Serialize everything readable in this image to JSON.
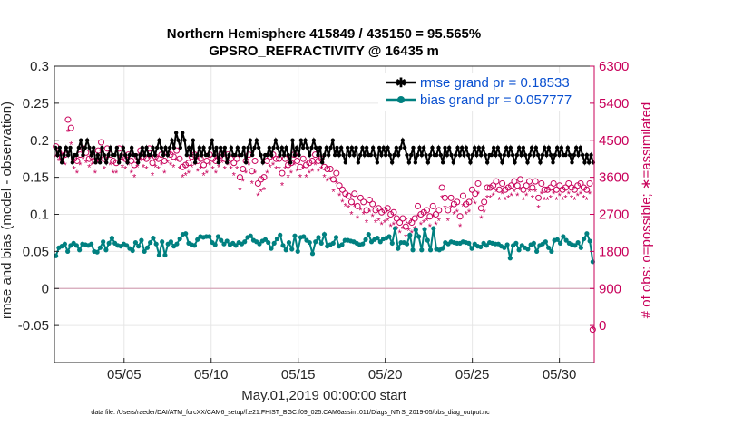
{
  "chart_data": {
    "type": "line",
    "title": "Northern Hemisphere 415849 / 435150 = 95.565%",
    "subtitle": "GPSRO_REFRACTIVITY @ 16435 m",
    "xlabel": "May.01,2019 00:00:00 start",
    "ylabel_left": "rmse and bias (model - observation)",
    "ylabel_right": "# of obs: o=possible; ∗=assimilated",
    "footer": "data file: /Users/raeder/DAI/ATM_forcXX/CAM6_setup/f.e21.FHIST_BGC.f09_025.CAM6assim.011/Diags_NTrS_2019-05/obs_diag_output.nc",
    "xlim": [
      1,
      32
    ],
    "x_ticks": [
      5,
      10,
      15,
      20,
      25,
      30
    ],
    "x_tick_labels": [
      "05/05",
      "05/10",
      "05/15",
      "05/20",
      "05/25",
      "05/30"
    ],
    "ylim_left": [
      -0.1,
      0.3
    ],
    "y_ticks_left": [
      -0.05,
      0,
      0.05,
      0.1,
      0.15,
      0.2,
      0.25,
      0.3
    ],
    "y_tick_labels_left": [
      "-0.05",
      "0",
      "0.05",
      "0.1",
      "0.15",
      "0.2",
      "0.25",
      "0.3"
    ],
    "ylim_right": [
      -900,
      6300
    ],
    "y_ticks_right": [
      0,
      900,
      1800,
      2700,
      3600,
      4500,
      5400,
      6300
    ],
    "y_tick_labels_right": [
      "0",
      "900",
      "1800",
      "2700",
      "3600",
      "4500",
      "5400",
      "6300"
    ],
    "legend": [
      {
        "label": "rmse grand pr = 0.18533",
        "color": "#000000",
        "marker": "asterisk"
      },
      {
        "label": "bias grand pr = 0.057777",
        "color": "#008080",
        "marker": "circle"
      }
    ],
    "series": [
      {
        "name": "rmse",
        "axis": "left",
        "color": "#000000",
        "values": [
          0.19,
          0.18,
          0.19,
          0.17,
          0.18,
          0.19,
          0.18,
          0.19,
          0.17,
          0.18,
          0.18,
          0.19,
          0.2,
          0.18,
          0.19,
          0.2,
          0.19,
          0.18,
          0.19,
          0.17,
          0.18,
          0.17,
          0.19,
          0.18,
          0.17,
          0.18,
          0.19,
          0.18,
          0.18,
          0.19,
          0.17,
          0.18,
          0.19,
          0.18,
          0.17,
          0.18,
          0.19,
          0.18,
          0.18,
          0.17,
          0.18,
          0.19,
          0.18,
          0.19,
          0.18,
          0.18,
          0.19,
          0.18,
          0.19,
          0.2,
          0.19,
          0.18,
          0.19,
          0.18,
          0.19,
          0.2,
          0.19,
          0.21,
          0.2,
          0.19,
          0.21,
          0.2,
          0.18,
          0.19,
          0.18,
          0.2,
          0.17,
          0.18,
          0.19,
          0.18,
          0.19,
          0.18,
          0.18,
          0.19,
          0.2,
          0.18,
          0.19,
          0.17,
          0.19,
          0.18,
          0.19,
          0.17,
          0.18,
          0.19,
          0.18,
          0.18,
          0.19,
          0.18,
          0.18,
          0.19,
          0.17,
          0.19,
          0.2,
          0.18,
          0.19,
          0.2,
          0.19,
          0.18,
          0.17,
          0.18,
          0.18,
          0.19,
          0.18,
          0.19,
          0.2,
          0.19,
          0.18,
          0.19,
          0.18,
          0.19,
          0.18,
          0.17,
          0.2,
          0.18,
          0.19,
          0.18,
          0.2,
          0.19,
          0.2,
          0.19,
          0.18,
          0.19,
          0.2,
          0.19,
          0.18,
          0.19,
          0.17,
          0.18,
          0.19,
          0.18,
          0.19,
          0.2,
          0.18,
          0.19,
          0.18,
          0.19,
          0.18,
          0.17,
          0.19,
          0.18,
          0.19,
          0.18,
          0.19,
          0.17,
          0.18,
          0.19,
          0.18,
          0.19,
          0.18,
          0.18,
          0.19,
          0.18,
          0.17,
          0.19,
          0.18,
          0.19,
          0.18,
          0.19,
          0.18,
          0.17,
          0.18,
          0.19,
          0.18,
          0.19,
          0.2,
          0.19,
          0.18,
          0.17,
          0.18,
          0.19,
          0.17,
          0.18,
          0.19,
          0.18,
          0.19,
          0.18,
          0.17,
          0.18,
          0.19,
          0.18,
          0.18,
          0.19,
          0.18,
          0.17,
          0.19,
          0.18,
          0.19,
          0.18,
          0.17,
          0.18,
          0.19,
          0.18,
          0.19,
          0.18,
          0.19,
          0.18,
          0.17,
          0.18,
          0.19,
          0.18,
          0.19,
          0.18,
          0.19,
          0.18,
          0.17,
          0.18,
          0.18,
          0.19,
          0.18,
          0.19,
          0.18,
          0.17,
          0.18,
          0.19,
          0.18,
          0.19,
          0.18,
          0.17,
          0.18,
          0.19,
          0.18,
          0.19,
          0.18,
          0.17,
          0.18,
          0.19,
          0.18,
          0.19,
          0.18,
          0.17,
          0.18,
          0.19,
          0.18,
          0.19,
          0.18,
          0.17,
          0.18,
          0.19,
          0.18,
          0.19,
          0.18,
          0.18,
          0.19,
          0.18,
          0.17,
          0.18,
          0.19,
          0.18,
          0.19,
          0.18,
          0.17,
          0.18,
          0.17,
          0.18,
          0.17
        ]
      },
      {
        "name": "bias",
        "axis": "left",
        "color": "#008080",
        "values": [
          0.044,
          0.055,
          0.057,
          0.06,
          0.05,
          0.058,
          0.061,
          0.058,
          0.052,
          0.06,
          0.059,
          0.058,
          0.06,
          0.05,
          0.049,
          0.055,
          0.063,
          0.052,
          0.061,
          0.068,
          0.061,
          0.058,
          0.057,
          0.06,
          0.058,
          0.054,
          0.051,
          0.062,
          0.057,
          0.065,
          0.05,
          0.055,
          0.062,
          0.068,
          0.06,
          0.045,
          0.063,
          0.045,
          0.06,
          0.063,
          0.057,
          0.06,
          0.067,
          0.073,
          0.074,
          0.061,
          0.059,
          0.058,
          0.066,
          0.07,
          0.069,
          0.07,
          0.07,
          0.062,
          0.059,
          0.07,
          0.065,
          0.06,
          0.064,
          0.059,
          0.061,
          0.058,
          0.062,
          0.06,
          0.063,
          0.069,
          0.071,
          0.065,
          0.063,
          0.06,
          0.064,
          0.066,
          0.062,
          0.054,
          0.061,
          0.067,
          0.072,
          0.058,
          0.052,
          0.062,
          0.053,
          0.071,
          0.05,
          0.069,
          0.07,
          0.065,
          0.062,
          0.047,
          0.063,
          0.069,
          0.061,
          0.073,
          0.057,
          0.059,
          0.061,
          0.069,
          0.057,
          0.059,
          0.065,
          0.065,
          0.064,
          0.063,
          0.061,
          0.059,
          0.06,
          0.066,
          0.073,
          0.063,
          0.066,
          0.068,
          0.063,
          0.067,
          0.068,
          0.07,
          0.061,
          0.081,
          0.054,
          0.062,
          0.062,
          0.06,
          0.072,
          0.052,
          0.079,
          0.07,
          0.052,
          0.08,
          0.065,
          0.052,
          0.081,
          0.053,
          0.052,
          0.054,
          0.062,
          0.06,
          0.063,
          0.062,
          0.061,
          0.061,
          0.063,
          0.062,
          0.061,
          0.054,
          0.06,
          0.057,
          0.056,
          0.061,
          0.058,
          0.062,
          0.061,
          0.06,
          0.06,
          0.057,
          0.055,
          0.059,
          0.041,
          0.058,
          0.061,
          0.052,
          0.058,
          0.055,
          0.053,
          0.059,
          0.061,
          0.05,
          0.058,
          0.06,
          0.063,
          0.055,
          0.05,
          0.065,
          0.066,
          0.061,
          0.07,
          0.065,
          0.061,
          0.059,
          0.058,
          0.062,
          0.055,
          0.067,
          0.074,
          0.064,
          0.036
        ]
      },
      {
        "name": "obs possible",
        "axis": "right",
        "color": "#c8005a",
        "marker": "o",
        "values": [
          4350,
          4200,
          4100,
          4150,
          5000,
          4800,
          4050,
          4000,
          4150,
          4300,
          4200,
          4050,
          4100,
          4000,
          4250,
          4450,
          4050,
          4300,
          4150,
          4000,
          3950,
          4300,
          4100,
          4050,
          4150,
          4000,
          3900,
          4100,
          4250,
          4100,
          4050,
          4300,
          3950,
          4100,
          4050,
          4150,
          4000,
          4200,
          4150,
          4100,
          4250,
          4050,
          3850,
          3900,
          3950,
          4100,
          4150,
          4000,
          4050,
          3900,
          4000,
          4150,
          4050,
          4000,
          4100,
          4200,
          4050,
          4150,
          4050,
          3950,
          4050,
          3600,
          3800,
          4000,
          4150,
          3750,
          4000,
          3450,
          3550,
          3600,
          4000,
          4100,
          4150,
          4050,
          4050,
          3700,
          4050,
          3900,
          3950,
          4150,
          4000,
          3850,
          4050,
          3900,
          3950,
          4000,
          4150,
          4000,
          4050,
          3850,
          3800,
          3800,
          3550,
          3700,
          3400,
          3300,
          3200,
          3150,
          3000,
          3200,
          2900,
          3100,
          3000,
          2800,
          3050,
          2950,
          2800,
          2850,
          2750,
          2800,
          2850,
          2700,
          2750,
          2600,
          2500,
          2600,
          2400,
          2550,
          2500,
          2600,
          2900,
          2700,
          2750,
          2800,
          2650,
          2900,
          2700,
          2800,
          3350,
          3100,
          2800,
          3100,
          2950,
          3000,
          2650,
          3150,
          2950,
          3000,
          3300,
          3200,
          3450,
          2850,
          3000,
          3350,
          3350,
          3400,
          3500,
          3300,
          3450,
          3300,
          3350,
          3400,
          3500,
          3400,
          3550,
          3300,
          3400,
          3500,
          3350,
          3500,
          3100,
          3450,
          3300,
          3300,
          3350,
          3450,
          3300,
          3400,
          3300,
          3350,
          3450,
          3350,
          3300,
          3400,
          3450,
          3350,
          3300,
          3450,
          -100
        ]
      },
      {
        "name": "obs assimilated",
        "axis": "right",
        "color": "#c8005a",
        "marker": "*",
        "values": [
          4100,
          4000,
          3950,
          3900,
          4700,
          4400,
          3800,
          3700,
          3900,
          4050,
          3950,
          3850,
          3900,
          3700,
          4000,
          4200,
          3800,
          4050,
          3900,
          3700,
          3700,
          4050,
          3850,
          3800,
          3900,
          3700,
          3600,
          3850,
          4000,
          3850,
          3800,
          4050,
          3650,
          3850,
          3800,
          3900,
          3700,
          3950,
          3900,
          3850,
          4000,
          3800,
          3600,
          3650,
          3700,
          3850,
          3900,
          3750,
          3800,
          3650,
          3700,
          3900,
          3800,
          3700,
          3850,
          3950,
          3800,
          3900,
          3800,
          3650,
          3800,
          3300,
          3500,
          3700,
          3900,
          3450,
          3700,
          3150,
          3250,
          3300,
          3700,
          3850,
          3900,
          3800,
          3800,
          3400,
          3800,
          3600,
          3700,
          3900,
          3750,
          3600,
          3800,
          3600,
          3700,
          3750,
          3900,
          3750,
          3800,
          3600,
          3500,
          3550,
          3250,
          3450,
          3150,
          3000,
          2900,
          2850,
          2700,
          2900,
          2600,
          2800,
          2700,
          2500,
          2750,
          2650,
          2500,
          2550,
          2450,
          2500,
          2550,
          2400,
          2450,
          2350,
          2250,
          2350,
          2150,
          2300,
          2250,
          2350,
          2650,
          2450,
          2500,
          2550,
          2400,
          2650,
          2450,
          2550,
          3100,
          2850,
          2550,
          2850,
          2700,
          2750,
          2400,
          2900,
          2700,
          2750,
          3050,
          2950,
          3200,
          2600,
          2750,
          3100,
          3100,
          3150,
          3250,
          3050,
          3200,
          3050,
          3100,
          3150,
          3250,
          3150,
          3300,
          3050,
          3150,
          3250,
          3100,
          3250,
          2850,
          3200,
          3050,
          3050,
          3100,
          3200,
          3050,
          3150,
          3050,
          3100,
          3200,
          3100,
          3050,
          3150,
          3200,
          3100,
          3050,
          3200,
          -100
        ]
      }
    ]
  }
}
